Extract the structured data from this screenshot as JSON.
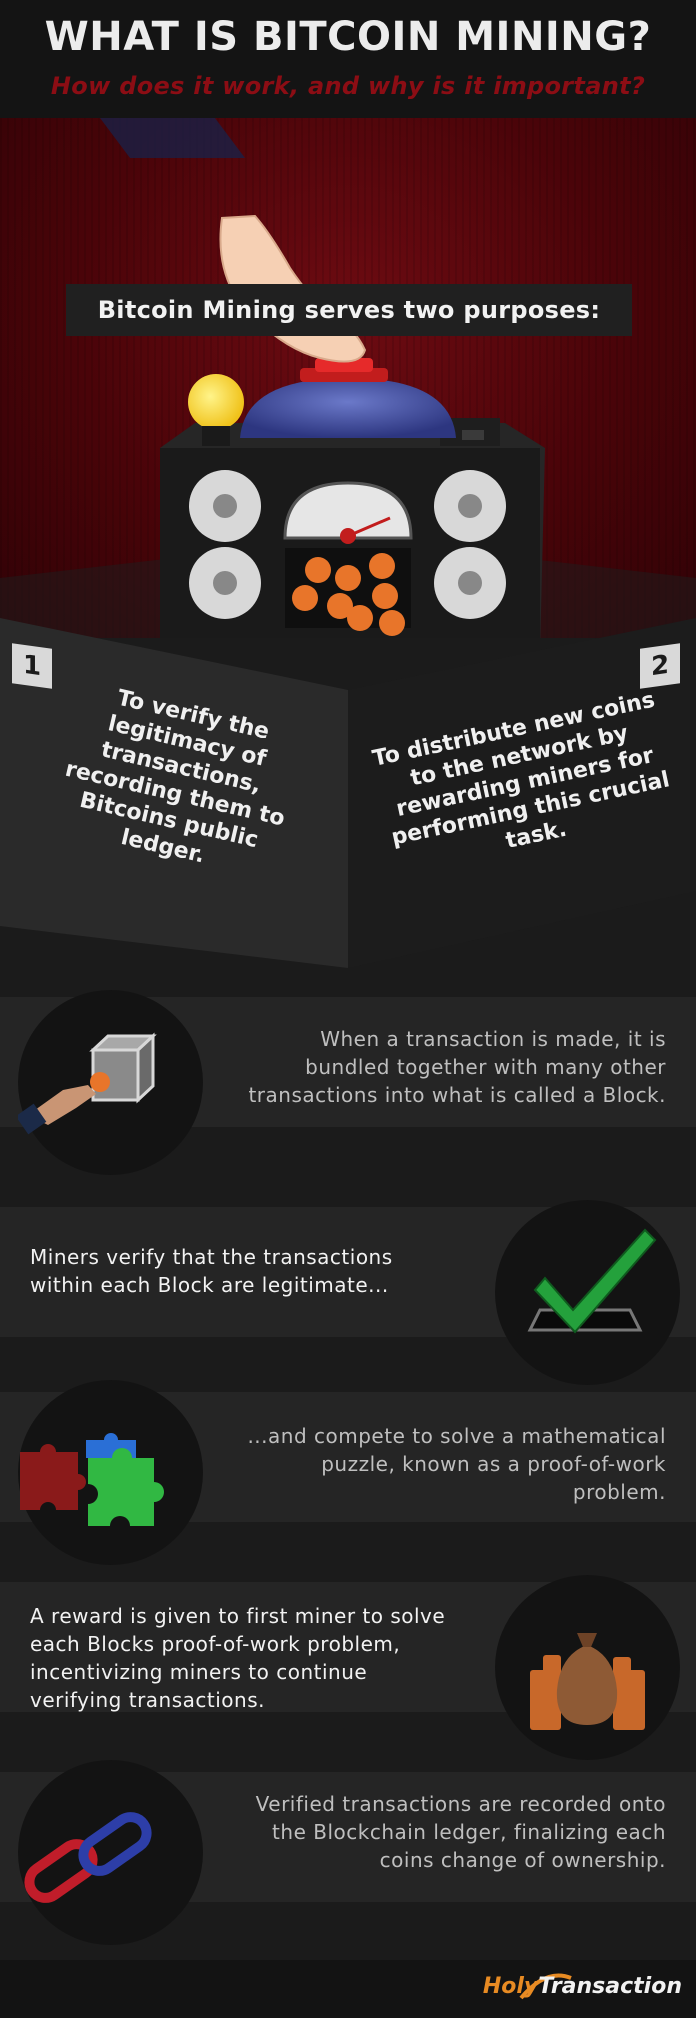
{
  "header": {
    "title": "WHAT IS BITCOIN MINING?",
    "subtitle": "How does it work, and why is it important?"
  },
  "hero": {
    "banner": "Bitcoin Mining serves two purposes:"
  },
  "purposes": [
    {
      "number": "1",
      "text": "To verify the legitimacy of transactions, recording them to Bitcoins public ledger."
    },
    {
      "number": "2",
      "text": "To distribute new coins to the network by rewarding miners for performing this crucial task."
    }
  ],
  "steps": [
    {
      "text": "When a transaction is made, it is bundled together with many other transactions into what is called a Block."
    },
    {
      "text": "Miners verify that the transactions within each Block are legitimate..."
    },
    {
      "text": "...and compete to solve a mathematical puzzle, known as a proof-of-work problem."
    },
    {
      "text": "A reward is given to first miner to solve each Blocks proof-of-work problem, incentivizing miners to continue verifying transactions."
    },
    {
      "text": "Verified transactions are recorded onto the Blockchain ledger, finalizing each coins change of ownership."
    }
  ],
  "footer": {
    "logo_holy": "Holy",
    "logo_transaction": "Transaction"
  },
  "colors": {
    "accent_red": "#8c0d14",
    "bitcoin_orange": "#e8752a",
    "check_green": "#24a13c"
  }
}
